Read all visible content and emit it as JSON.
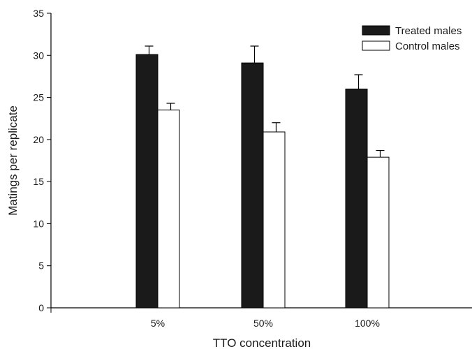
{
  "chart_data": {
    "type": "bar",
    "categories": [
      "5%",
      "50%",
      "100%"
    ],
    "series": [
      {
        "name": "Treated males",
        "values": [
          30.1,
          29.1,
          26.0
        ],
        "errors": [
          1.0,
          2.0,
          1.7
        ],
        "color": "#1a1a1a"
      },
      {
        "name": "Control males",
        "values": [
          23.5,
          20.9,
          17.9
        ],
        "errors": [
          0.8,
          1.1,
          0.8
        ],
        "color": "#ffffff"
      }
    ],
    "xlabel": "TTO concentration",
    "ylabel": "Matings per replicate",
    "ylim": [
      0,
      35
    ],
    "yticks": [
      0,
      5,
      10,
      15,
      20,
      25,
      30,
      35
    ],
    "grid": false,
    "legend_position": "top-right"
  }
}
